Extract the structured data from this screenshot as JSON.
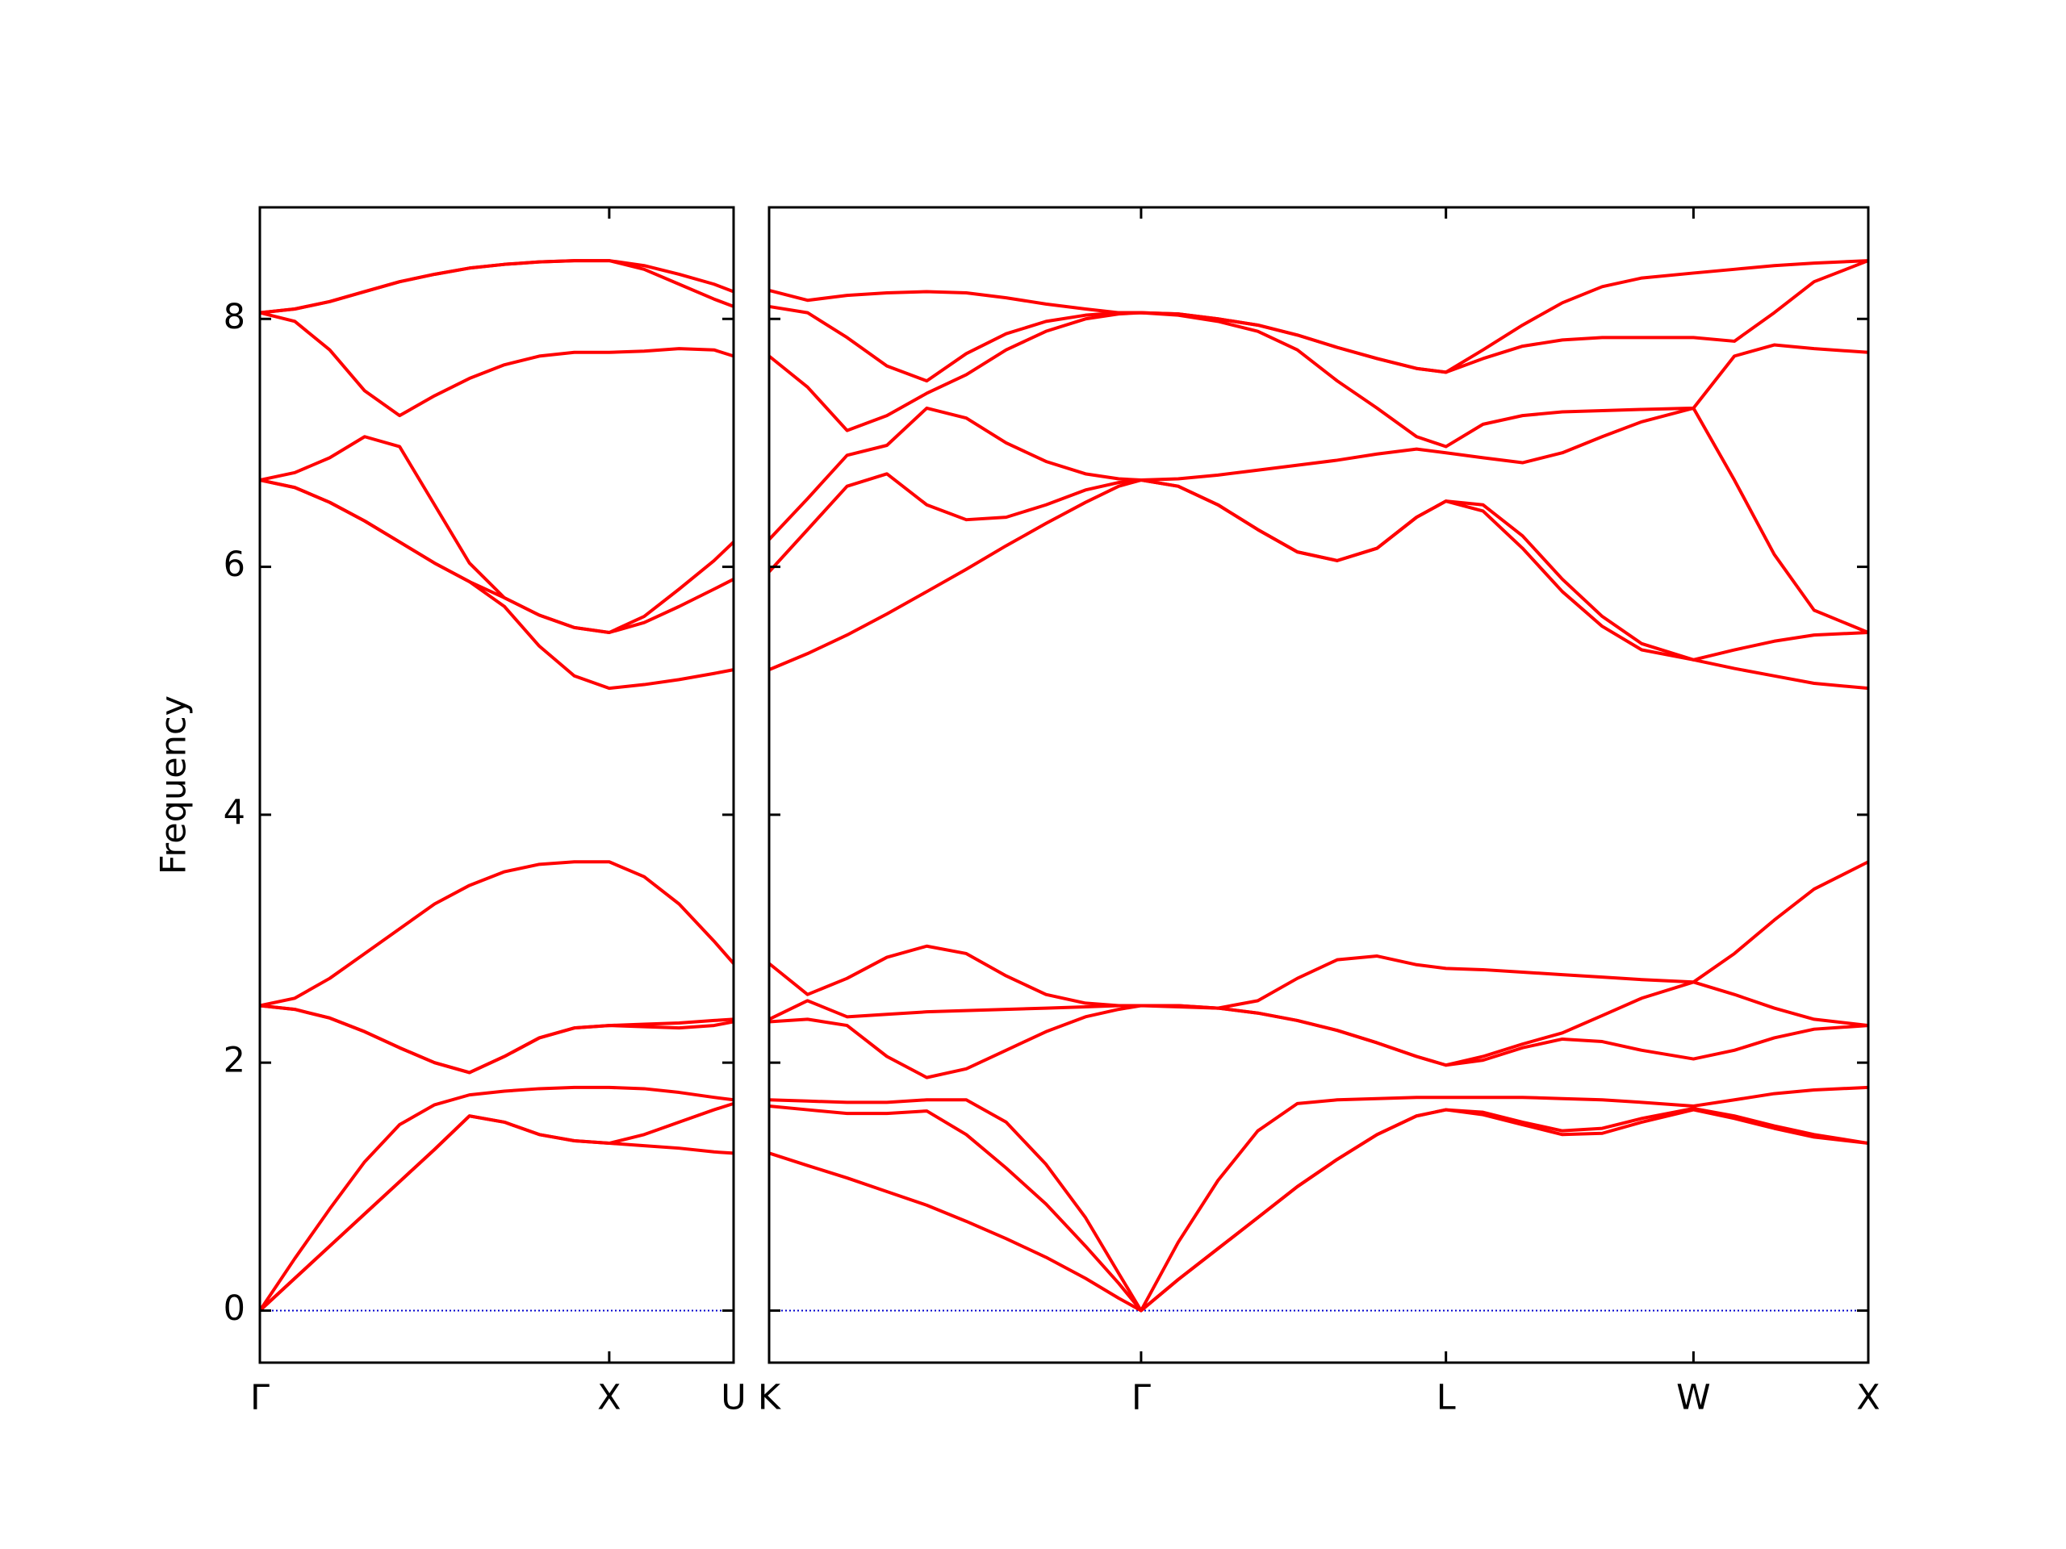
{
  "chart_data": [
    {
      "type": "line",
      "ylabel": "Frequency",
      "x": [
        0,
        0.1,
        0.2,
        0.3,
        0.4,
        0.5,
        0.6,
        0.7,
        0.8,
        0.9,
        1.0,
        1.1,
        1.2,
        1.3,
        1.356
      ],
      "xlim": [
        0,
        1.356
      ],
      "xticks": [
        {
          "value": 0,
          "label": "Γ"
        },
        {
          "value": 1,
          "label": "X"
        },
        {
          "value": 1.356,
          "label": "U"
        }
      ],
      "ylim": [
        -0.42,
        8.9
      ],
      "yticks": [
        0,
        2,
        4,
        6,
        8
      ],
      "show_ytick_labels": true,
      "hline": {
        "y": 0,
        "color": "#0000cc"
      },
      "series": [
        {
          "color": "#ff0000",
          "values": [
            0,
            0.26,
            0.52,
            0.78,
            1.04,
            1.3,
            1.57,
            1.52,
            1.42,
            1.37,
            1.35,
            1.33,
            1.31,
            1.28,
            1.27
          ]
        },
        {
          "color": "#ff0000",
          "values": [
            0,
            0.26,
            0.52,
            0.78,
            1.04,
            1.3,
            1.57,
            1.52,
            1.42,
            1.37,
            1.35,
            1.42,
            1.52,
            1.62,
            1.67
          ]
        },
        {
          "color": "#ff0000",
          "values": [
            0,
            0.42,
            0.82,
            1.2,
            1.5,
            1.66,
            1.74,
            1.77,
            1.79,
            1.8,
            1.8,
            1.79,
            1.76,
            1.72,
            1.7
          ]
        },
        {
          "color": "#ff0000",
          "values": [
            2.46,
            2.43,
            2.36,
            2.25,
            2.12,
            2.0,
            1.92,
            2.05,
            2.2,
            2.28,
            2.3,
            2.29,
            2.28,
            2.3,
            2.33
          ]
        },
        {
          "color": "#ff0000",
          "values": [
            2.46,
            2.43,
            2.36,
            2.25,
            2.12,
            2.0,
            1.92,
            2.05,
            2.2,
            2.28,
            2.3,
            2.31,
            2.32,
            2.34,
            2.35
          ]
        },
        {
          "color": "#ff0000",
          "values": [
            2.46,
            2.52,
            2.68,
            2.88,
            3.08,
            3.28,
            3.43,
            3.54,
            3.6,
            3.62,
            3.62,
            3.5,
            3.28,
            2.98,
            2.8
          ]
        },
        {
          "color": "#ff0000",
          "values": [
            6.7,
            6.64,
            6.52,
            6.37,
            6.2,
            6.03,
            5.88,
            5.68,
            5.36,
            5.12,
            5.02,
            5.05,
            5.09,
            5.14,
            5.17
          ]
        },
        {
          "color": "#ff0000",
          "values": [
            6.7,
            6.64,
            6.52,
            6.37,
            6.2,
            6.03,
            5.88,
            5.75,
            5.61,
            5.51,
            5.47,
            5.55,
            5.68,
            5.82,
            5.9
          ]
        },
        {
          "color": "#ff0000",
          "values": [
            6.7,
            6.76,
            6.88,
            7.05,
            6.97,
            6.5,
            6.03,
            5.75,
            5.61,
            5.51,
            5.47,
            5.6,
            5.82,
            6.05,
            6.2
          ]
        },
        {
          "color": "#ff0000",
          "values": [
            8.05,
            7.98,
            7.75,
            7.42,
            7.22,
            7.38,
            7.52,
            7.63,
            7.7,
            7.73,
            7.73,
            7.74,
            7.76,
            7.75,
            7.7
          ]
        },
        {
          "color": "#ff0000",
          "values": [
            8.05,
            8.08,
            8.14,
            8.22,
            8.3,
            8.36,
            8.41,
            8.44,
            8.46,
            8.47,
            8.47,
            8.4,
            8.28,
            8.16,
            8.1
          ]
        },
        {
          "color": "#ff0000",
          "values": [
            8.05,
            8.08,
            8.14,
            8.22,
            8.3,
            8.36,
            8.41,
            8.44,
            8.46,
            8.47,
            8.47,
            8.43,
            8.36,
            8.28,
            8.22
          ]
        }
      ]
    },
    {
      "type": "line",
      "x": [
        0,
        0.11,
        0.223,
        0.337,
        0.451,
        0.564,
        0.678,
        0.792,
        0.905,
        1.0,
        1.064,
        1.17,
        1.284,
        1.398,
        1.511,
        1.625,
        1.739,
        1.852,
        1.936,
        2.042,
        2.155,
        2.269,
        2.383,
        2.496,
        2.644,
        2.761,
        2.875,
        2.989,
        3.144
      ],
      "xlim": [
        0,
        3.144
      ],
      "xticks": [
        {
          "value": 0,
          "label": "K"
        },
        {
          "value": 1.064,
          "label": "Γ"
        },
        {
          "value": 1.936,
          "label": "L"
        },
        {
          "value": 2.644,
          "label": "W"
        },
        {
          "value": 3.144,
          "label": "X"
        }
      ],
      "ylim": [
        -0.42,
        8.9
      ],
      "yticks": [
        0,
        2,
        4,
        6,
        8
      ],
      "show_ytick_labels": false,
      "hline": {
        "y": 0,
        "color": "#0000cc"
      },
      "series": [
        {
          "color": "#ff0000",
          "values": [
            1.27,
            1.17,
            1.07,
            0.96,
            0.85,
            0.72,
            0.58,
            0.43,
            0.26,
            0.1,
            0,
            0.25,
            0.5,
            0.75,
            1.0,
            1.22,
            1.42,
            1.57,
            1.62,
            1.58,
            1.5,
            1.42,
            1.43,
            1.52,
            1.62,
            1.55,
            1.47,
            1.4,
            1.35
          ]
        },
        {
          "color": "#ff0000",
          "values": [
            1.65,
            1.62,
            1.59,
            1.59,
            1.61,
            1.42,
            1.15,
            0.86,
            0.52,
            0.22,
            0,
            0.25,
            0.5,
            0.75,
            1.0,
            1.22,
            1.42,
            1.57,
            1.62,
            1.6,
            1.52,
            1.45,
            1.47,
            1.55,
            1.63,
            1.57,
            1.49,
            1.42,
            1.35
          ]
        },
        {
          "color": "#ff0000",
          "values": [
            1.7,
            1.69,
            1.68,
            1.68,
            1.7,
            1.7,
            1.52,
            1.18,
            0.75,
            0.3,
            0,
            0.55,
            1.05,
            1.45,
            1.67,
            1.7,
            1.71,
            1.72,
            1.72,
            1.72,
            1.72,
            1.71,
            1.7,
            1.68,
            1.65,
            1.7,
            1.75,
            1.78,
            1.8
          ]
        },
        {
          "color": "#ff0000",
          "values": [
            2.33,
            2.35,
            2.3,
            2.05,
            1.88,
            1.95,
            2.1,
            2.25,
            2.37,
            2.43,
            2.46,
            2.45,
            2.44,
            2.4,
            2.34,
            2.26,
            2.16,
            2.05,
            1.98,
            2.02,
            2.12,
            2.19,
            2.17,
            2.1,
            2.03,
            2.1,
            2.2,
            2.27,
            2.3
          ]
        },
        {
          "color": "#ff0000",
          "values": [
            2.35,
            2.5,
            2.37,
            2.39,
            2.41,
            2.42,
            2.43,
            2.44,
            2.45,
            2.46,
            2.46,
            2.46,
            2.44,
            2.4,
            2.34,
            2.26,
            2.16,
            2.05,
            1.98,
            2.05,
            2.15,
            2.24,
            2.38,
            2.52,
            2.65,
            2.55,
            2.44,
            2.35,
            2.3
          ]
        },
        {
          "color": "#ff0000",
          "values": [
            2.8,
            2.55,
            2.68,
            2.85,
            2.94,
            2.88,
            2.7,
            2.55,
            2.48,
            2.46,
            2.46,
            2.46,
            2.44,
            2.5,
            2.68,
            2.83,
            2.86,
            2.79,
            2.76,
            2.75,
            2.73,
            2.71,
            2.69,
            2.67,
            2.65,
            2.88,
            3.15,
            3.4,
            3.62
          ]
        },
        {
          "color": "#ff0000",
          "values": [
            5.17,
            5.3,
            5.45,
            5.62,
            5.8,
            5.98,
            6.17,
            6.35,
            6.52,
            6.65,
            6.7,
            6.65,
            6.5,
            6.3,
            6.12,
            6.05,
            6.15,
            6.4,
            6.53,
            6.45,
            6.15,
            5.8,
            5.52,
            5.33,
            5.25,
            5.18,
            5.12,
            5.06,
            5.02
          ]
        },
        {
          "color": "#ff0000",
          "values": [
            5.96,
            6.3,
            6.65,
            6.75,
            6.5,
            6.38,
            6.4,
            6.5,
            6.62,
            6.68,
            6.7,
            6.65,
            6.5,
            6.3,
            6.12,
            6.05,
            6.15,
            6.4,
            6.53,
            6.5,
            6.25,
            5.9,
            5.6,
            5.38,
            5.25,
            5.33,
            5.4,
            5.45,
            5.47
          ]
        },
        {
          "color": "#ff0000",
          "values": [
            6.22,
            6.55,
            6.9,
            6.98,
            7.28,
            7.2,
            7.0,
            6.85,
            6.75,
            6.71,
            6.7,
            6.71,
            6.74,
            6.78,
            6.82,
            6.86,
            6.91,
            6.95,
            6.92,
            6.88,
            6.84,
            6.92,
            7.05,
            7.17,
            7.28,
            6.7,
            6.1,
            5.65,
            5.47
          ]
        },
        {
          "color": "#ff0000",
          "values": [
            7.7,
            7.45,
            7.1,
            7.22,
            7.4,
            7.55,
            7.75,
            7.9,
            8.0,
            8.04,
            8.05,
            8.03,
            7.98,
            7.9,
            7.75,
            7.5,
            7.28,
            7.05,
            6.97,
            7.15,
            7.22,
            7.25,
            7.26,
            7.27,
            7.28,
            7.7,
            7.79,
            7.76,
            7.73
          ]
        },
        {
          "color": "#ff0000",
          "values": [
            8.1,
            8.05,
            7.85,
            7.62,
            7.5,
            7.72,
            7.88,
            7.98,
            8.03,
            8.05,
            8.05,
            8.04,
            8.0,
            7.95,
            7.87,
            7.77,
            7.68,
            7.6,
            7.57,
            7.68,
            7.78,
            7.83,
            7.85,
            7.85,
            7.85,
            7.82,
            8.05,
            8.3,
            8.47
          ]
        },
        {
          "color": "#ff0000",
          "values": [
            8.23,
            8.15,
            8.19,
            8.21,
            8.22,
            8.21,
            8.17,
            8.12,
            8.08,
            8.05,
            8.05,
            8.04,
            8.0,
            7.95,
            7.87,
            7.77,
            7.68,
            7.6,
            7.57,
            7.75,
            7.95,
            8.13,
            8.26,
            8.33,
            8.37,
            8.4,
            8.43,
            8.45,
            8.47
          ]
        }
      ]
    }
  ]
}
